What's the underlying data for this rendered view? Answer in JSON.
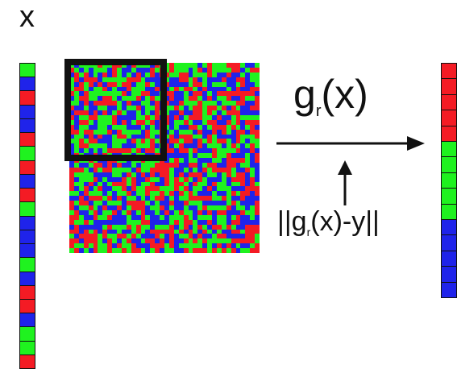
{
  "labels": {
    "input_vector": "x",
    "function_name": "g",
    "function_subscript": "r",
    "function_args": "(x)",
    "loss_prefix": "||g",
    "loss_subscript": "r",
    "loss_suffix": "(x)-y||"
  },
  "colors": {
    "red": "#f41b24",
    "green": "#1ff21f",
    "blue": "#1f23ea",
    "outline": "#111111"
  },
  "input_vector": [
    "green",
    "blue",
    "red",
    "blue",
    "blue",
    "red",
    "green",
    "red",
    "blue",
    "red",
    "green",
    "blue",
    "blue",
    "blue",
    "green",
    "blue",
    "red",
    "red",
    "blue",
    "green",
    "green",
    "red"
  ],
  "matrix_palette": [
    "red",
    "green",
    "blue"
  ],
  "matrix_size": 40,
  "output_vector": [
    "red",
    "red",
    "red",
    "red",
    "red",
    "green",
    "green",
    "green",
    "green",
    "green",
    "blue",
    "blue",
    "blue",
    "blue",
    "blue"
  ]
}
